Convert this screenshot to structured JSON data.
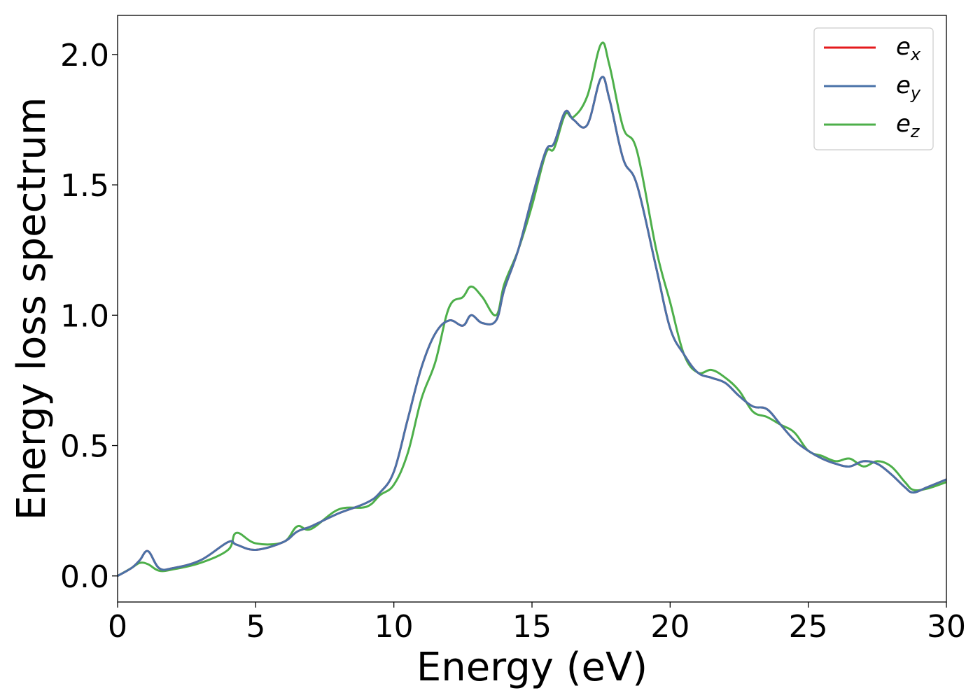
{
  "chart_data": {
    "type": "line",
    "xlabel": "Energy (eV)",
    "ylabel": "Energy loss spectrum",
    "xlim": [
      0,
      30
    ],
    "ylim": [
      -0.1,
      2.15
    ],
    "xticks": [
      0,
      5,
      10,
      15,
      20,
      25,
      30
    ],
    "xtick_labels": [
      "0",
      "5",
      "10",
      "15",
      "20",
      "25",
      "30"
    ],
    "yticks": [
      0.0,
      0.5,
      1.0,
      1.5,
      2.0
    ],
    "ytick_labels": [
      "0.0",
      "0.5",
      "1.0",
      "1.5",
      "2.0"
    ],
    "grid": false,
    "legend_position": "top-right",
    "x": [
      0,
      0.5,
      0.8,
      1.1,
      1.5,
      2,
      3,
      4,
      4.3,
      5,
      6,
      6.5,
      7,
      8,
      9,
      9.5,
      10,
      10.5,
      11,
      11.5,
      12,
      12.5,
      12.8,
      13.2,
      13.7,
      14,
      14.5,
      15,
      15.5,
      15.8,
      16.2,
      16.5,
      17,
      17.5,
      17.8,
      18.3,
      18.8,
      19.5,
      20,
      20.5,
      21,
      21.5,
      22,
      22.5,
      23,
      23.5,
      24,
      24.5,
      25,
      25.5,
      26,
      26.5,
      27,
      27.5,
      28,
      28.5,
      28.8,
      29.3,
      30
    ],
    "series": [
      {
        "name": "e",
        "subscript": "x",
        "color": "#e41a1c",
        "values": [
          0,
          0.03,
          0.06,
          0.095,
          0.03,
          0.03,
          0.06,
          0.13,
          0.12,
          0.1,
          0.13,
          0.17,
          0.19,
          0.24,
          0.28,
          0.32,
          0.4,
          0.6,
          0.8,
          0.93,
          0.98,
          0.96,
          1.0,
          0.97,
          0.98,
          1.1,
          1.25,
          1.45,
          1.63,
          1.66,
          1.78,
          1.75,
          1.73,
          1.91,
          1.83,
          1.6,
          1.5,
          1.18,
          0.95,
          0.85,
          0.78,
          0.76,
          0.74,
          0.69,
          0.65,
          0.64,
          0.58,
          0.52,
          0.48,
          0.45,
          0.43,
          0.42,
          0.44,
          0.43,
          0.39,
          0.34,
          0.32,
          0.34,
          0.37
        ]
      },
      {
        "name": "e",
        "subscript": "y",
        "color": "#4a72a8",
        "values": [
          0,
          0.03,
          0.06,
          0.095,
          0.03,
          0.03,
          0.06,
          0.13,
          0.12,
          0.1,
          0.13,
          0.17,
          0.19,
          0.24,
          0.28,
          0.32,
          0.4,
          0.6,
          0.8,
          0.93,
          0.98,
          0.96,
          1.0,
          0.97,
          0.98,
          1.1,
          1.25,
          1.45,
          1.63,
          1.66,
          1.78,
          1.75,
          1.73,
          1.91,
          1.83,
          1.6,
          1.5,
          1.18,
          0.95,
          0.85,
          0.78,
          0.76,
          0.74,
          0.69,
          0.65,
          0.64,
          0.58,
          0.52,
          0.48,
          0.45,
          0.43,
          0.42,
          0.44,
          0.43,
          0.39,
          0.34,
          0.32,
          0.34,
          0.37
        ]
      },
      {
        "name": "e",
        "subscript": "z",
        "color": "#4daf4a",
        "values": [
          0,
          0.03,
          0.05,
          0.045,
          0.02,
          0.025,
          0.05,
          0.1,
          0.165,
          0.125,
          0.13,
          0.19,
          0.18,
          0.255,
          0.265,
          0.31,
          0.35,
          0.47,
          0.68,
          0.82,
          1.03,
          1.07,
          1.11,
          1.07,
          1.0,
          1.12,
          1.25,
          1.42,
          1.62,
          1.64,
          1.77,
          1.76,
          1.84,
          2.04,
          1.96,
          1.72,
          1.63,
          1.25,
          1.05,
          0.85,
          0.78,
          0.79,
          0.76,
          0.71,
          0.63,
          0.61,
          0.58,
          0.55,
          0.48,
          0.46,
          0.44,
          0.45,
          0.42,
          0.44,
          0.42,
          0.36,
          0.33,
          0.335,
          0.36
        ]
      }
    ]
  }
}
